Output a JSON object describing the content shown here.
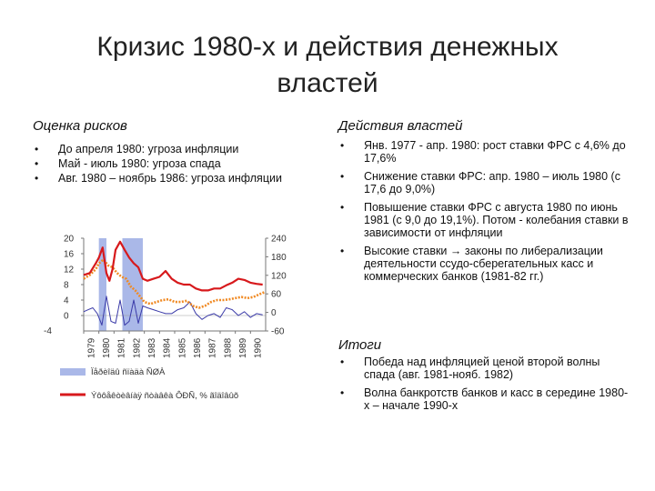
{
  "title": {
    "line1": "Кризис 1980-х и действия денежных",
    "line2": "властей"
  },
  "left": {
    "heading": "Оценка рисков",
    "items": [
      "До апреля 1980: угроза инфляции",
      "Май - июль 1980: угроза спада",
      "Авг. 1980 – ноябрь 1986: угроза инфляции"
    ]
  },
  "right": {
    "heading": "Действия властей",
    "items": [
      "Янв. 1977 - апр. 1980: рост ставки ФРС с 4,6% до 17,6%",
      "Снижение ставки ФРС: апр. 1980 – июль 1980 (с 17,6 до 9,0%)",
      "Повышение ставки ФРС с августа 1980 по июнь 1981 (с 9,0 до 19,1%). Потом - колебания ставки в зависимости от инфляции",
      "Высокие ставки → законы по либерализации деятельности ссудо-сберегательных касс и коммерческих банков (1981-82 гг.)"
    ]
  },
  "results": {
    "heading": "Итоги",
    "items": [
      "Победа над инфляцией ценой второй волны спада (авг. 1981-нояб. 1982)",
      "Волна банкротств банков и касс в середине 1980-х – начале 1990-х"
    ]
  },
  "colors": {
    "rate_line": "#d7191c",
    "inflation_line": "#f08a24",
    "third_line": "#3a3aa8",
    "recession_band": "#aab8e8"
  },
  "chart_data": {
    "type": "line",
    "x_ticks": [
      "1979",
      "1980",
      "1981",
      "1982",
      "1983",
      "1984",
      "1985",
      "1986",
      "1987",
      "1988",
      "1989",
      "1990"
    ],
    "y_left_ticks": [
      "20",
      "16",
      "12",
      "8",
      "4",
      "0"
    ],
    "y_right_ticks": [
      "240",
      "180",
      "120",
      "60",
      "0",
      "-60"
    ],
    "y_left_extra": "-4",
    "ylim_left": [
      -4,
      20
    ],
    "ylim_right": [
      -60,
      240
    ],
    "recessions": [
      [
        1980.0,
        1980.5
      ],
      [
        1981.55,
        1982.9
      ]
    ],
    "series": [
      {
        "color": "rate",
        "x": [
          1979.0,
          1979.4,
          1979.8,
          1980.0,
          1980.25,
          1980.5,
          1980.7,
          1980.9,
          1981.1,
          1981.4,
          1981.7,
          1982.0,
          1982.3,
          1982.6,
          1982.9,
          1983.2,
          1983.6,
          1984.0,
          1984.4,
          1984.8,
          1985.2,
          1985.6,
          1986.0,
          1986.4,
          1986.8,
          1987.2,
          1987.6,
          1988.0,
          1988.4,
          1988.8,
          1989.2,
          1989.6,
          1990.0,
          1990.4,
          1990.8
        ],
        "y": [
          10.5,
          11.0,
          13.5,
          15.0,
          17.6,
          11.0,
          9.0,
          12.0,
          17.0,
          19.1,
          17.0,
          15.0,
          13.5,
          12.5,
          9.5,
          9.0,
          9.5,
          10.0,
          11.5,
          9.5,
          8.5,
          8.0,
          8.0,
          7.0,
          6.5,
          6.5,
          7.0,
          7.0,
          7.8,
          8.5,
          9.5,
          9.2,
          8.5,
          8.2,
          8.0
        ]
      },
      {
        "color": "inflation",
        "x": [
          1979.0,
          1979.4,
          1979.8,
          1980.0,
          1980.3,
          1980.6,
          1980.9,
          1981.2,
          1981.5,
          1981.8,
          1982.1,
          1982.4,
          1982.7,
          1983.0,
          1983.4,
          1983.8,
          1984.2,
          1984.6,
          1985.0,
          1985.4,
          1985.8,
          1986.2,
          1986.6,
          1987.0,
          1987.4,
          1987.8,
          1988.2,
          1988.6,
          1989.0,
          1989.4,
          1989.8,
          1990.2,
          1990.6,
          1990.9
        ],
        "y": [
          9.5,
          10.5,
          12.0,
          13.5,
          14.5,
          13.0,
          12.5,
          11.0,
          10.0,
          9.5,
          7.5,
          6.5,
          5.0,
          3.5,
          3.0,
          3.5,
          4.0,
          4.2,
          3.5,
          3.5,
          3.8,
          2.5,
          2.0,
          2.5,
          3.5,
          4.0,
          4.0,
          4.2,
          4.5,
          4.8,
          4.5,
          4.8,
          5.5,
          6.0
        ]
      },
      {
        "color": "third",
        "x": [
          1979.0,
          1979.3,
          1979.6,
          1979.9,
          1980.2,
          1980.5,
          1980.8,
          1981.1,
          1981.4,
          1981.7,
          1982.0,
          1982.3,
          1982.6,
          1982.9,
          1983.2,
          1983.6,
          1984.0,
          1984.4,
          1984.8,
          1985.2,
          1985.6,
          1986.0,
          1986.4,
          1986.8,
          1987.2,
          1987.6,
          1988.0,
          1988.4,
          1988.8,
          1989.2,
          1989.6,
          1990.0,
          1990.4,
          1990.8
        ],
        "y": [
          1.0,
          1.5,
          2.0,
          0.5,
          -2.5,
          5.0,
          -1.5,
          -2.0,
          4.0,
          -2.5,
          -1.5,
          4.0,
          -2.0,
          2.5,
          2.0,
          1.5,
          1.0,
          0.5,
          0.5,
          1.5,
          2.0,
          3.5,
          0.5,
          -1.0,
          0.0,
          0.5,
          -0.5,
          2.0,
          1.5,
          0.0,
          1.0,
          -0.5,
          0.5,
          0.2
        ]
      }
    ],
    "legend": [
      {
        "color": "recession",
        "label": "Ïåðèîäû ñïàäà ÑØÀ"
      },
      {
        "color": "rate",
        "label": "Ýôôåêòèâíàÿ ñòàâêà ÔÐÑ, % ãîäîâûõ"
      }
    ]
  }
}
